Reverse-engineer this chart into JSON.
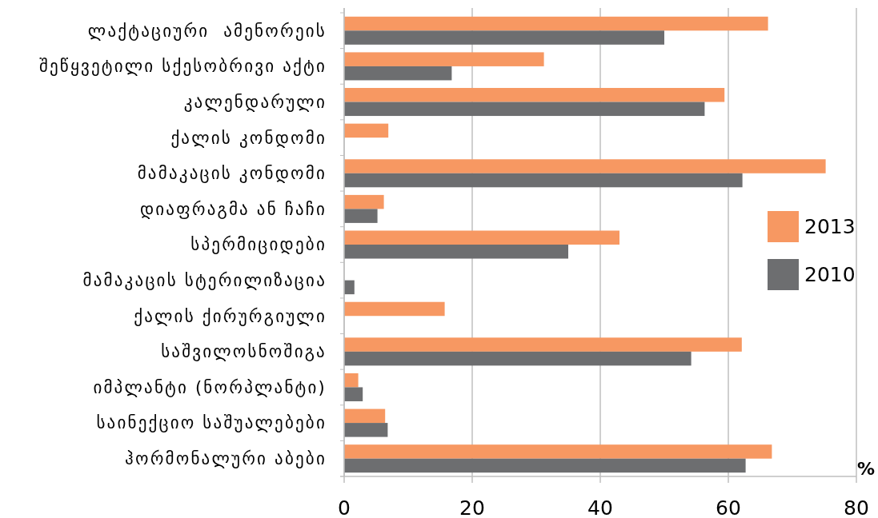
{
  "chart_data": {
    "type": "bar",
    "orientation": "horizontal",
    "categories": [
      "ლაქტაციური  ამენორეის",
      "შეწყვეტილი სქესობრივი აქტი",
      "კალენდარული",
      "ქალის კონდომი",
      "მამაკაცის კონდომი",
      "დიაფრაგმა ან ჩაჩი",
      "სპერმიციდები",
      "მამაკაცის სტერილიზაცია",
      "ქალის ქირურგიული",
      "საშვილოსნოშიგა",
      "იმპლანტი (ნორპლანტი)",
      "საინექციო საშუალებები",
      "ჰორმონალური აბები"
    ],
    "series": [
      {
        "name": "2013",
        "color": "#f79862",
        "values": [
          66.2,
          31.2,
          59.4,
          6.9,
          75.2,
          6.2,
          43.0,
          null,
          15.7,
          62.1,
          2.2,
          6.4,
          66.8
        ]
      },
      {
        "name": "2010",
        "color": "#6d6e70",
        "values": [
          50.0,
          16.8,
          56.3,
          null,
          62.2,
          5.2,
          35.0,
          1.6,
          null,
          54.2,
          2.9,
          6.8,
          62.7
        ]
      }
    ],
    "xlim": [
      0,
      80
    ],
    "xticks": [
      0,
      20,
      40,
      60,
      80
    ],
    "xlabel": "%",
    "grid": "x",
    "legend": "right"
  }
}
